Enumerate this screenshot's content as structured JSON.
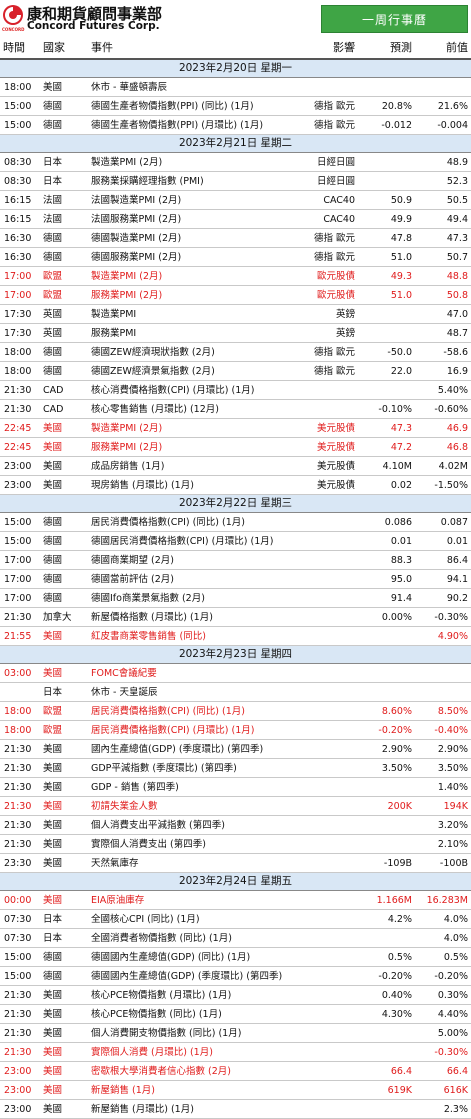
{
  "brand": {
    "name_zh": "康和期貨顧問事業部",
    "name_en": "Concord Futures Corp.",
    "logo_small": "CONCORD",
    "logo_icon": "concord-logo-mark",
    "accent": "#3fa545"
  },
  "report_title": "一周行事曆",
  "columns": {
    "time": "時間",
    "country": "國家",
    "event": "事件",
    "impact": "影響",
    "forecast": "預測",
    "previous": "前值"
  },
  "days": [
    {
      "date": "2023年2月20日  星期一",
      "rows": [
        {
          "time": "18:00",
          "country": "美國",
          "event": "休市 - 華盛頓壽辰",
          "impact": "",
          "forecast": "",
          "previous": "",
          "red": false
        },
        {
          "time": "15:00",
          "country": "德國",
          "event": "德國生產者物價指數(PPI) (同比) (1月)",
          "impact": "德指 歐元",
          "forecast": "20.8%",
          "previous": "21.6%",
          "red": false
        },
        {
          "time": "15:00",
          "country": "德國",
          "event": "德國生產者物價指數(PPI) (月環比) (1月)",
          "impact": "德指 歐元",
          "forecast": "-0.012",
          "previous": "-0.004",
          "red": false
        }
      ]
    },
    {
      "date": "2023年2月21日  星期二",
      "rows": [
        {
          "time": "08:30",
          "country": "日本",
          "event": "製造業PMI (2月)",
          "impact": "日經日圓",
          "forecast": "",
          "previous": "48.9",
          "red": false
        },
        {
          "time": "08:30",
          "country": "日本",
          "event": "服務業採購經理指數 (PMI)",
          "impact": "日經日圓",
          "forecast": "",
          "previous": "52.3",
          "red": false
        },
        {
          "time": "16:15",
          "country": "法國",
          "event": "法國製造業PMI (2月)",
          "impact": "CAC40",
          "forecast": "50.9",
          "previous": "50.5",
          "red": false
        },
        {
          "time": "16:15",
          "country": "法國",
          "event": "法國服務業PMI (2月)",
          "impact": "CAC40",
          "forecast": "49.9",
          "previous": "49.4",
          "red": false
        },
        {
          "time": "16:30",
          "country": "德國",
          "event": "德國製造業PMI (2月)",
          "impact": "德指 歐元",
          "forecast": "47.8",
          "previous": "47.3",
          "red": false
        },
        {
          "time": "16:30",
          "country": "德國",
          "event": "德國服務業PMI (2月)",
          "impact": "德指 歐元",
          "forecast": "51.0",
          "previous": "50.7",
          "red": false
        },
        {
          "time": "17:00",
          "country": "歐盟",
          "event": "製造業PMI (2月)",
          "impact": "歐元股債",
          "forecast": "49.3",
          "previous": "48.8",
          "red": true
        },
        {
          "time": "17:00",
          "country": "歐盟",
          "event": "服務業PMI (2月)",
          "impact": "歐元股債",
          "forecast": "51.0",
          "previous": "50.8",
          "red": true
        },
        {
          "time": "17:30",
          "country": "英國",
          "event": "製造業PMI",
          "impact": "英鎊",
          "forecast": "",
          "previous": "47.0",
          "red": false
        },
        {
          "time": "17:30",
          "country": "英國",
          "event": "服務業PMI",
          "impact": "英鎊",
          "forecast": "",
          "previous": "48.7",
          "red": false
        },
        {
          "time": "18:00",
          "country": "德國",
          "event": "德國ZEW經濟現狀指數 (2月)",
          "impact": "德指 歐元",
          "forecast": "-50.0",
          "previous": "-58.6",
          "red": false
        },
        {
          "time": "18:00",
          "country": "德國",
          "event": "德國ZEW經濟景氣指數 (2月)",
          "impact": "德指 歐元",
          "forecast": "22.0",
          "previous": "16.9",
          "red": false
        },
        {
          "time": "21:30",
          "country": "CAD",
          "event": "核心消費價格指數(CPI) (月環比) (1月)",
          "impact": "",
          "forecast": "",
          "previous": "5.40%",
          "red": false
        },
        {
          "time": "21:30",
          "country": "CAD",
          "event": "核心零售銷售 (月環比) (12月)",
          "impact": "",
          "forecast": "-0.10%",
          "previous": "-0.60%",
          "red": false
        },
        {
          "time": "22:45",
          "country": "美國",
          "event": "製造業PMI (2月)",
          "impact": "美元股債",
          "forecast": "47.3",
          "previous": "46.9",
          "red": true
        },
        {
          "time": "22:45",
          "country": "美國",
          "event": "服務業PMI (2月)",
          "impact": "美元股債",
          "forecast": "47.2",
          "previous": "46.8",
          "red": true
        },
        {
          "time": "23:00",
          "country": "美國",
          "event": "成品房銷售 (1月)",
          "impact": "美元股債",
          "forecast": "4.10M",
          "previous": "4.02M",
          "red": false
        },
        {
          "time": "23:00",
          "country": "美國",
          "event": "現房銷售 (月環比) (1月)",
          "impact": "美元股債",
          "forecast": "0.02",
          "previous": "-1.50%",
          "red": false
        }
      ]
    },
    {
      "date": "2023年2月22日  星期三",
      "rows": [
        {
          "time": "15:00",
          "country": "德國",
          "event": "居民消費價格指數(CPI) (同比) (1月)",
          "impact": "",
          "forecast": "0.086",
          "previous": "0.087",
          "red": false
        },
        {
          "time": "15:00",
          "country": "德國",
          "event": "德國居民消費價格指數(CPI) (月環比) (1月)",
          "impact": "",
          "forecast": "0.01",
          "previous": "0.01",
          "red": false
        },
        {
          "time": "17:00",
          "country": "德國",
          "event": "德國商業期望 (2月)",
          "impact": "",
          "forecast": "88.3",
          "previous": "86.4",
          "red": false
        },
        {
          "time": "17:00",
          "country": "德國",
          "event": "德國當前評估 (2月)",
          "impact": "",
          "forecast": "95.0",
          "previous": "94.1",
          "red": false
        },
        {
          "time": "17:00",
          "country": "德國",
          "event": "德國Ifo商業景氣指數 (2月)",
          "impact": "",
          "forecast": "91.4",
          "previous": "90.2",
          "red": false
        },
        {
          "time": "21:30",
          "country": "加拿大",
          "event": "新屋價格指數 (月環比) (1月)",
          "impact": "",
          "forecast": "0.00%",
          "previous": "-0.30%",
          "red": false
        },
        {
          "time": "21:55",
          "country": "美國",
          "event": "紅皮書商業零售銷售 (同比)",
          "impact": "",
          "forecast": "",
          "previous": "4.90%",
          "red": true
        }
      ]
    },
    {
      "date": "2023年2月23日  星期四",
      "rows": [
        {
          "time": "03:00",
          "country": "美國",
          "event": "FOMC會議紀要",
          "impact": "",
          "forecast": "",
          "previous": "",
          "red": true
        },
        {
          "time": "",
          "country": "日本",
          "event": "休市 - 天皇誕辰",
          "impact": "",
          "forecast": "",
          "previous": "",
          "red": false
        },
        {
          "time": "18:00",
          "country": "歐盟",
          "event": "居民消費價格指數(CPI) (同比) (1月)",
          "impact": "",
          "forecast": "8.60%",
          "previous": "8.50%",
          "red": true
        },
        {
          "time": "18:00",
          "country": "歐盟",
          "event": "居民消費價格指數(CPI) (月環比) (1月)",
          "impact": "",
          "forecast": "-0.20%",
          "previous": "-0.40%",
          "red": true
        },
        {
          "time": "21:30",
          "country": "美國",
          "event": "國內生產總值(GDP) (季度環比) (第四季)",
          "impact": "",
          "forecast": "2.90%",
          "previous": "2.90%",
          "red": false
        },
        {
          "time": "21:30",
          "country": "美國",
          "event": "GDP平減指數 (季度環比) (第四季)",
          "impact": "",
          "forecast": "3.50%",
          "previous": "3.50%",
          "red": false
        },
        {
          "time": "21:30",
          "country": "美國",
          "event": "GDP - 銷售 (第四季)",
          "impact": "",
          "forecast": "",
          "previous": "1.40%",
          "red": false
        },
        {
          "time": "21:30",
          "country": "美國",
          "event": "初請失業金人數",
          "impact": "",
          "forecast": "200K",
          "previous": "194K",
          "red": true
        },
        {
          "time": "21:30",
          "country": "美國",
          "event": "個人消費支出平減指數 (第四季)",
          "impact": "",
          "forecast": "",
          "previous": "3.20%",
          "red": false
        },
        {
          "time": "21:30",
          "country": "美國",
          "event": "實際個人消費支出 (第四季)",
          "impact": "",
          "forecast": "",
          "previous": "2.10%",
          "red": false
        },
        {
          "time": "23:30",
          "country": "美國",
          "event": "天然氣庫存",
          "impact": "",
          "forecast": "-109B",
          "previous": "-100B",
          "red": false
        }
      ]
    },
    {
      "date": "2023年2月24日  星期五",
      "rows": [
        {
          "time": "00:00",
          "country": "美國",
          "event": "EIA原油庫存",
          "impact": "",
          "forecast": "1.166M",
          "previous": "16.283M",
          "red": true
        },
        {
          "time": "07:30",
          "country": "日本",
          "event": "全國核心CPI (同比) (1月)",
          "impact": "",
          "forecast": "4.2%",
          "previous": "4.0%",
          "red": false
        },
        {
          "time": "07:30",
          "country": "日本",
          "event": "全國消費者物價指數 (同比) (1月)",
          "impact": "",
          "forecast": "",
          "previous": "4.0%",
          "red": false
        },
        {
          "time": "15:00",
          "country": "德國",
          "event": "德國國內生產總值(GDP) (同比) (1月)",
          "impact": "",
          "forecast": "0.5%",
          "previous": "0.5%",
          "red": false
        },
        {
          "time": "15:00",
          "country": "德國",
          "event": "德國國內生產總值(GDP) (季度環比) (第四季)",
          "impact": "",
          "forecast": "-0.20%",
          "previous": "-0.20%",
          "red": false
        },
        {
          "time": "21:30",
          "country": "美國",
          "event": "核心PCE物價指數 (月環比) (1月)",
          "impact": "",
          "forecast": "0.40%",
          "previous": "0.30%",
          "red": false
        },
        {
          "time": "21:30",
          "country": "美國",
          "event": "核心PCE物價指數 (同比) (1月)",
          "impact": "",
          "forecast": "4.30%",
          "previous": "4.40%",
          "red": false
        },
        {
          "time": "21:30",
          "country": "美國",
          "event": "個人消費開支物價指數 (同比) (1月)",
          "impact": "",
          "forecast": "",
          "previous": "5.00%",
          "red": false
        },
        {
          "time": "21:30",
          "country": "美國",
          "event": "實際個人消費 (月環比) (1月)",
          "impact": "",
          "forecast": "",
          "previous": "-0.30%",
          "red": true
        },
        {
          "time": "23:00",
          "country": "美國",
          "event": "密歇根大學消費者信心指數 (2月)",
          "impact": "",
          "forecast": "66.4",
          "previous": "66.4",
          "red": true
        },
        {
          "time": "23:00",
          "country": "美國",
          "event": "新屋銷售 (1月)",
          "impact": "",
          "forecast": "619K",
          "previous": "616K",
          "red": true
        },
        {
          "time": "23:00",
          "country": "美國",
          "event": "新屋銷售 (月環比) (1月)",
          "impact": "",
          "forecast": "",
          "previous": "2.3%",
          "red": false
        }
      ]
    }
  ]
}
